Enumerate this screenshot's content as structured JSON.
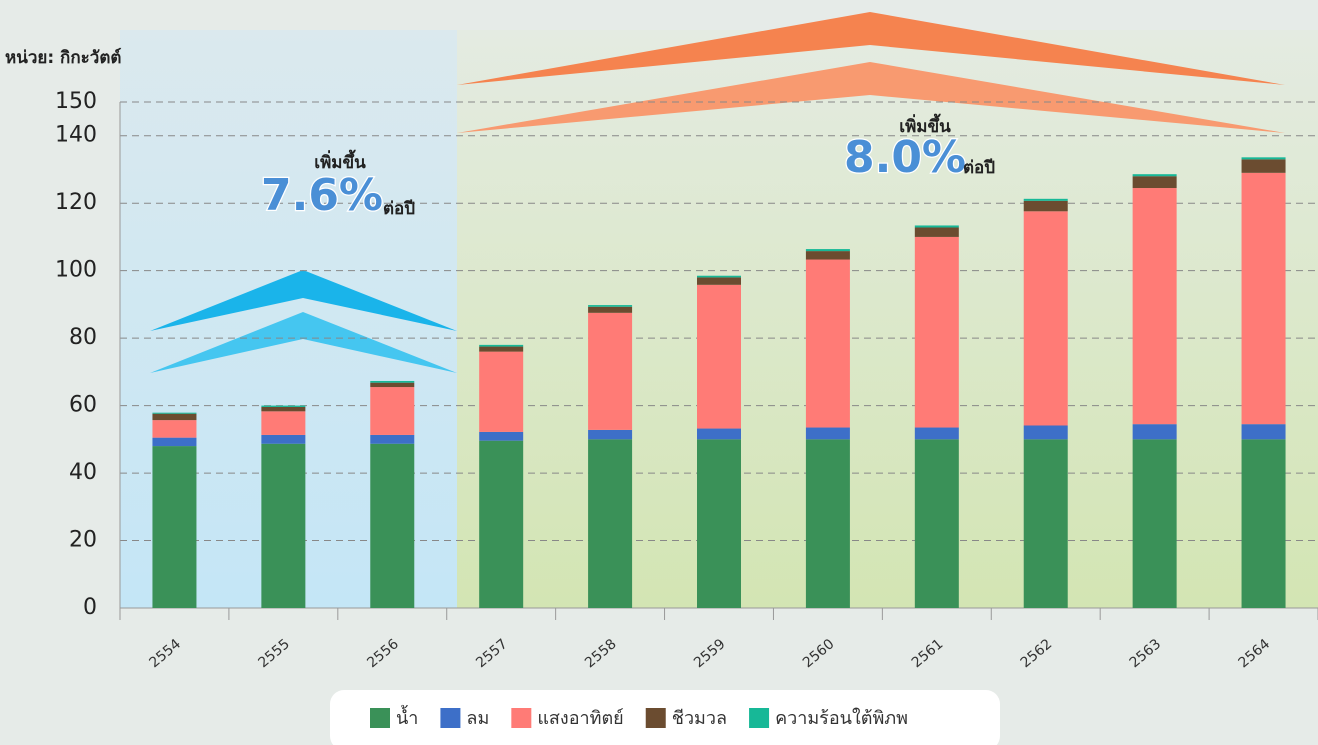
{
  "chart_data": {
    "type": "stacked_bar",
    "unit_label": "หน่วย: กิกะวัตต์",
    "categories": [
      "2554",
      "2555",
      "2556",
      "2557",
      "2558",
      "2559",
      "2560",
      "2561",
      "2562",
      "2563",
      "2564"
    ],
    "series": [
      {
        "name": "น้ำ",
        "color": "#3a9158",
        "values": [
          48,
          48.7,
          48.7,
          49.6,
          50,
          50,
          50,
          50,
          50,
          50,
          50
        ]
      },
      {
        "name": "ลม",
        "color": "#3d6fc8",
        "values": [
          2.5,
          2.6,
          2.6,
          2.6,
          2.8,
          3.2,
          3.5,
          3.5,
          4.1,
          4.5,
          4.5
        ]
      },
      {
        "name": "แสงอาทิตย์",
        "color": "#ff7b76",
        "values": [
          5.2,
          7,
          14.2,
          23.8,
          34.7,
          42.6,
          49.8,
          56.5,
          63.5,
          70,
          74.5
        ]
      },
      {
        "name": "ชีวมวล",
        "color": "#6b4c30",
        "values": [
          1.9,
          1.3,
          1.3,
          1.5,
          1.8,
          2.2,
          2.5,
          2.8,
          3.1,
          3.5,
          4
        ]
      },
      {
        "name": "ความร้อนใต้พิภพ",
        "color": "#17b897",
        "values": [
          0.3,
          0.4,
          0.5,
          0.5,
          0.5,
          0.5,
          0.6,
          0.6,
          0.6,
          0.6,
          0.6
        ]
      }
    ],
    "ylim": [
      0,
      150
    ],
    "yticks": [
      0,
      20,
      40,
      60,
      80,
      100,
      120,
      140,
      150
    ],
    "grid": true,
    "growth_annotations": [
      {
        "label": "เพิ่มขึ้น",
        "rate": "7.6%",
        "unit": "ต่อปี"
      },
      {
        "label": "เพิ่มขึ้น",
        "rate": "8.0%",
        "unit": "ต่อปี"
      }
    ]
  }
}
